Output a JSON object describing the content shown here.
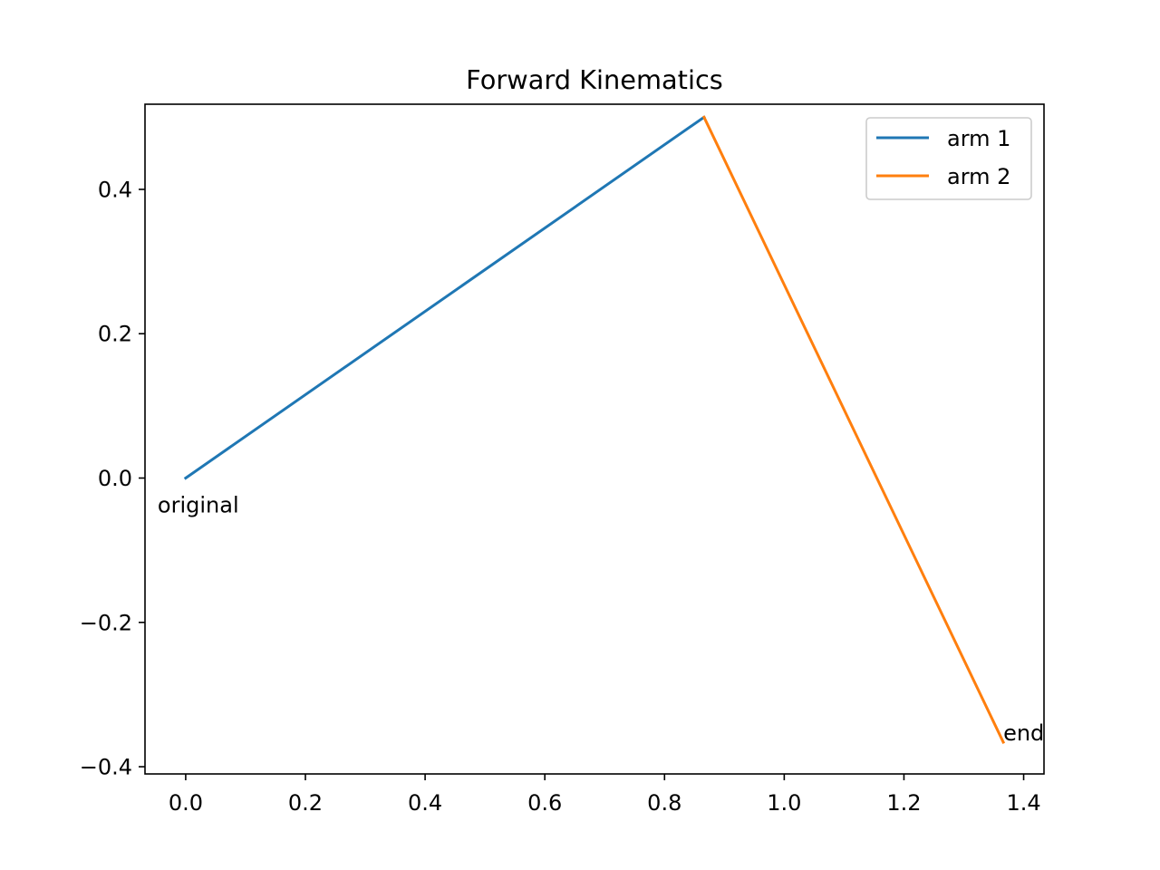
{
  "chart_data": {
    "type": "line",
    "title": "Forward Kinematics",
    "xlabel": "",
    "ylabel": "",
    "xlim": [
      -0.068,
      1.434
    ],
    "ylim": [
      -0.41,
      0.518
    ],
    "xticks": [
      0.0,
      0.2,
      0.4,
      0.6,
      0.8,
      1.0,
      1.2,
      1.4
    ],
    "xtick_labels": [
      "0.0",
      "0.2",
      "0.4",
      "0.6",
      "0.8",
      "1.0",
      "1.2",
      "1.4"
    ],
    "yticks": [
      -0.4,
      -0.2,
      0.0,
      0.2,
      0.4
    ],
    "ytick_labels": [
      "−0.4",
      "−0.2",
      "0.0",
      "0.2",
      "0.4"
    ],
    "grid": false,
    "legend_position": "top-right",
    "series": [
      {
        "name": "arm 1",
        "color": "#1f77b4",
        "x": [
          0.0,
          0.866
        ],
        "y": [
          0.0,
          0.5
        ]
      },
      {
        "name": "arm 2",
        "color": "#ff7f0e",
        "x": [
          0.866,
          1.366
        ],
        "y": [
          0.5,
          -0.366
        ]
      }
    ],
    "annotations": [
      {
        "text": "original",
        "x": 0.0,
        "y": 0.0
      },
      {
        "text": "end",
        "x": 1.366,
        "y": -0.366
      }
    ]
  }
}
